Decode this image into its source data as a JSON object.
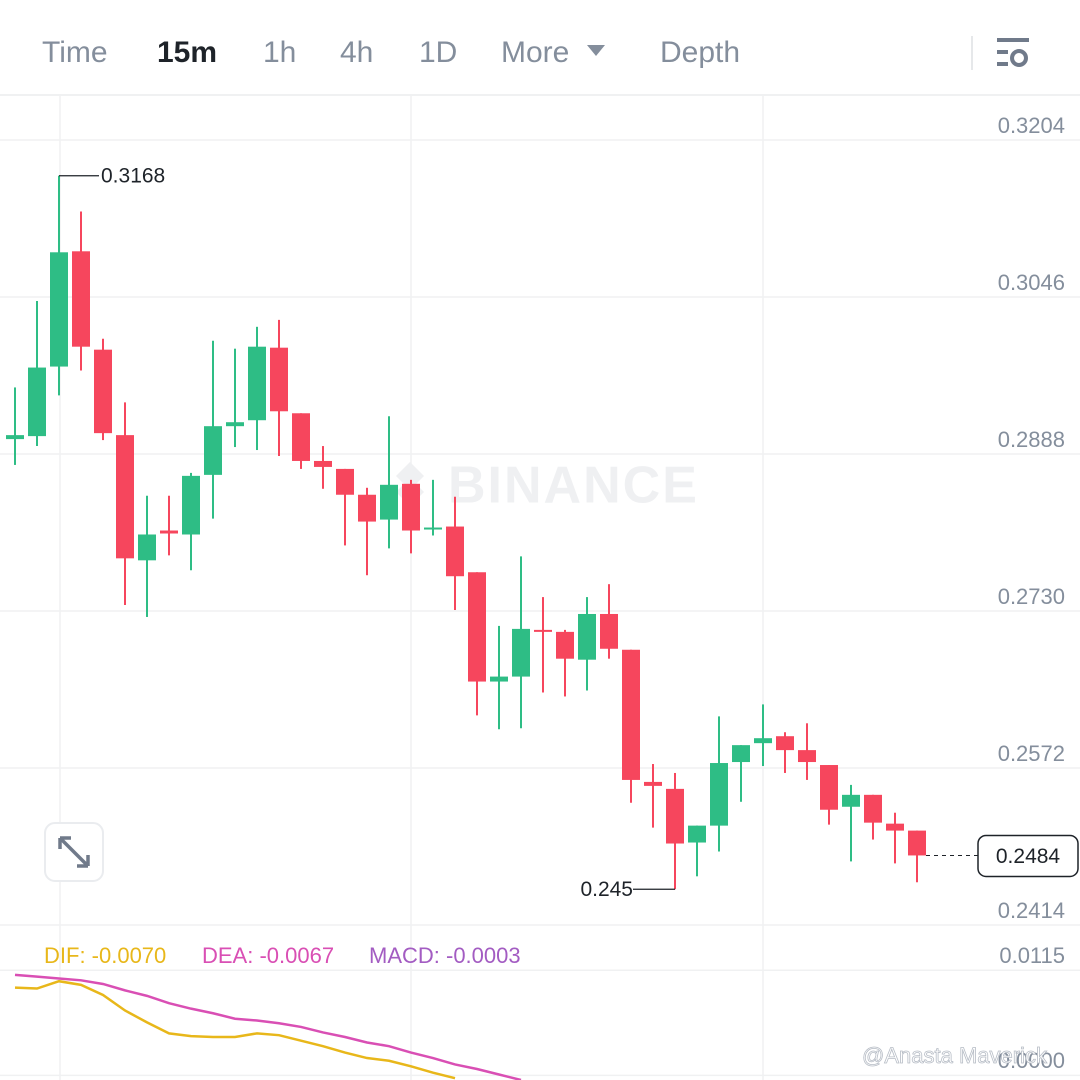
{
  "tabs": [
    "Time",
    "15m",
    "1h",
    "4h",
    "1D",
    "More",
    "Depth"
  ],
  "watermarks": [
    "BINANCE",
    "@Anasta Maverick"
  ],
  "chart_data": [
    {
      "type": "candlestick",
      "up_color": "#2ebd85",
      "down_color": "#f6465d",
      "candles": {
        "open": [
          0.2903,
          0.2906,
          0.2976,
          0.3092,
          0.2993,
          0.2907,
          0.2781,
          0.2811,
          0.2807,
          0.2867,
          0.2916,
          0.2922,
          0.2995,
          0.2929,
          0.2881,
          0.2873,
          0.2847,
          0.2822,
          0.2858,
          0.2812,
          0.2815,
          0.2769,
          0.2659,
          0.2664,
          0.2711,
          0.2709,
          0.2681,
          0.2727,
          0.2691,
          0.2558,
          0.2551,
          0.2497,
          0.2514,
          0.2578,
          0.2597,
          0.2604,
          0.259,
          0.2575,
          0.2533,
          0.2545,
          0.2516,
          0.2509
        ],
        "high": [
          0.2955,
          0.3042,
          0.3168,
          0.3132,
          0.3004,
          0.294,
          0.2846,
          0.2846,
          0.2869,
          0.3002,
          0.2994,
          0.3016,
          0.3023,
          0.2929,
          0.2896,
          0.2873,
          0.2854,
          0.2926,
          0.2862,
          0.2862,
          0.2845,
          0.2769,
          0.2715,
          0.2785,
          0.2744,
          0.2711,
          0.2744,
          0.2757,
          0.2691,
          0.2576,
          0.2567,
          0.2514,
          0.2624,
          0.2595,
          0.2636,
          0.2608,
          0.2617,
          0.2575,
          0.2555,
          0.2545,
          0.2527,
          0.2509
        ],
        "low": [
          0.2877,
          0.2896,
          0.2947,
          0.2972,
          0.2902,
          0.2736,
          0.2724,
          0.2786,
          0.2771,
          0.2823,
          0.2895,
          0.2892,
          0.2886,
          0.2873,
          0.2853,
          0.2796,
          0.2766,
          0.2793,
          0.2788,
          0.2806,
          0.2731,
          0.2625,
          0.2611,
          0.2612,
          0.2648,
          0.2644,
          0.265,
          0.2682,
          0.2537,
          0.2512,
          0.245,
          0.2463,
          0.2488,
          0.2538,
          0.2574,
          0.2567,
          0.256,
          0.2515,
          0.2478,
          0.25,
          0.2476,
          0.2457
        ],
        "close": [
          0.2907,
          0.2975,
          0.3091,
          0.2996,
          0.2909,
          0.2783,
          0.2807,
          0.2808,
          0.2866,
          0.2916,
          0.292,
          0.2996,
          0.2931,
          0.2881,
          0.2875,
          0.2847,
          0.282,
          0.2857,
          0.2811,
          0.2814,
          0.2765,
          0.2659,
          0.2664,
          0.2712,
          0.271,
          0.2682,
          0.2727,
          0.2692,
          0.256,
          0.2554,
          0.2496,
          0.2514,
          0.2577,
          0.2595,
          0.2602,
          0.259,
          0.2578,
          0.253,
          0.2545,
          0.2517,
          0.2509,
          0.2484
        ]
      },
      "ylim": [
        0.2414,
        0.325
      ],
      "yticks": [
        0.3204,
        0.3046,
        0.2888,
        {
          "value": 0.273,
          "label": "0.2730"
        },
        0.2572,
        0.2414
      ],
      "grid": true
    },
    {
      "type": "line",
      "series": [
        {
          "name": "DIF: -0.0070",
          "color": "#e8b71a",
          "values": [
            0.0096,
            0.0095,
            0.0103,
            0.0099,
            0.0088,
            0.0071,
            0.0058,
            0.0046,
            0.0043,
            0.0042,
            0.0042,
            0.0046,
            0.0044,
            0.0038,
            0.0032,
            0.0025,
            0.0019,
            0.0016,
            0.001,
            0.0003,
            -0.0003,
            null,
            null,
            null,
            null,
            null,
            null,
            null,
            null,
            null,
            null,
            null,
            null,
            null,
            null,
            null,
            null,
            null,
            null,
            null,
            null,
            null
          ]
        },
        {
          "name": "DEA: -0.0067",
          "color": "#d94fb4",
          "values": [
            0.011,
            0.0108,
            0.0106,
            0.0104,
            0.01,
            0.0093,
            0.0087,
            0.0079,
            0.0073,
            0.0068,
            0.0062,
            0.006,
            0.0057,
            0.0053,
            0.0047,
            0.0042,
            0.0036,
            0.0032,
            0.0025,
            0.0019,
            0.0012,
            0.0007,
            0.0001,
            -0.0005,
            null,
            null,
            null,
            null,
            null,
            null,
            null,
            null,
            null,
            null,
            null,
            null,
            null,
            null,
            null,
            null,
            null,
            null
          ]
        }
      ],
      "histogram_label": "MACD: -0.0003",
      "histogram_color": "#a35cc2",
      "ylim": [
        -0.0005,
        0.0159
      ],
      "yticks": [
        0.0115,
        {
          "value": 0,
          "label": "0.0000"
        }
      ],
      "grid": true
    }
  ]
}
